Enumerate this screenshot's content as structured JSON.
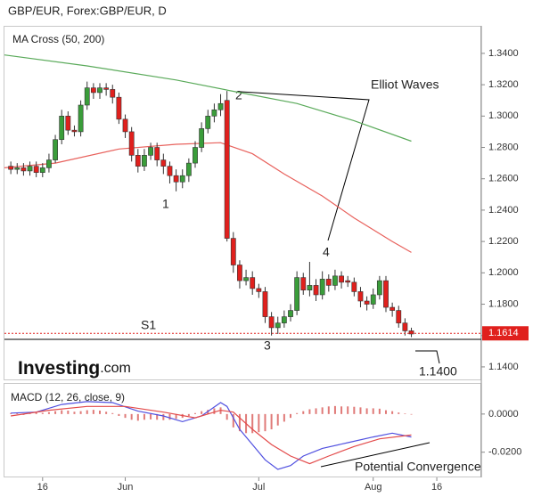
{
  "chart_data": [
    {
      "type": "candlestick",
      "title": "GBP/EUR, Forex:GBP/EUR, D",
      "indicator_label": "MA Cross (50, 200)",
      "up_color": "#3a9d3a",
      "down_color": "#e0201d",
      "open": [
        1.268,
        1.266,
        1.267,
        1.265,
        1.268,
        1.264,
        1.267,
        1.272,
        1.285,
        1.3,
        1.291,
        1.29,
        1.307,
        1.318,
        1.315,
        1.318,
        1.317,
        1.312,
        1.298,
        1.29,
        1.275,
        1.268,
        1.275,
        1.28,
        1.272,
        1.268,
        1.262,
        1.258,
        1.262,
        1.27,
        1.28,
        1.292,
        1.3,
        1.304,
        1.31,
        1.222,
        1.205,
        1.195,
        1.197,
        1.19,
        1.188,
        1.172,
        1.165,
        1.168,
        1.172,
        1.176,
        1.197,
        1.189,
        1.192,
        1.186,
        1.196,
        1.192,
        1.198,
        1.195,
        1.194,
        1.188,
        1.182,
        1.18,
        1.186,
        1.195,
        1.178,
        1.176,
        1.168,
        1.163
      ],
      "high": [
        1.271,
        1.27,
        1.27,
        1.271,
        1.271,
        1.27,
        1.276,
        1.288,
        1.304,
        1.303,
        1.294,
        1.31,
        1.322,
        1.321,
        1.321,
        1.321,
        1.32,
        1.315,
        1.301,
        1.293,
        1.279,
        1.279,
        1.283,
        1.283,
        1.276,
        1.271,
        1.266,
        1.266,
        1.273,
        1.284,
        1.296,
        1.304,
        1.308,
        1.314,
        1.316,
        1.226,
        1.208,
        1.202,
        1.201,
        1.193,
        1.191,
        1.175,
        1.172,
        1.176,
        1.18,
        1.201,
        1.2,
        1.207,
        1.196,
        1.201,
        1.199,
        1.202,
        1.201,
        1.198,
        1.197,
        1.191,
        1.185,
        1.19,
        1.198,
        1.198,
        1.181,
        1.179,
        1.171,
        1.165
      ],
      "low": [
        1.263,
        1.263,
        1.262,
        1.262,
        1.261,
        1.261,
        1.264,
        1.27,
        1.282,
        1.288,
        1.287,
        1.287,
        1.304,
        1.311,
        1.311,
        1.313,
        1.308,
        1.295,
        1.286,
        1.271,
        1.264,
        1.265,
        1.272,
        1.268,
        1.263,
        1.257,
        1.252,
        1.254,
        1.258,
        1.267,
        1.277,
        1.289,
        1.296,
        1.3,
        1.22,
        1.2,
        1.19,
        1.192,
        1.186,
        1.184,
        1.168,
        1.16,
        1.161,
        1.165,
        1.169,
        1.173,
        1.186,
        1.185,
        1.182,
        1.183,
        1.188,
        1.189,
        1.19,
        1.191,
        1.185,
        1.178,
        1.176,
        1.177,
        1.183,
        1.175,
        1.172,
        1.165,
        1.16,
        1.159
      ],
      "close": [
        1.266,
        1.267,
        1.265,
        1.268,
        1.264,
        1.267,
        1.272,
        1.285,
        1.3,
        1.291,
        1.29,
        1.307,
        1.318,
        1.315,
        1.318,
        1.317,
        1.312,
        1.298,
        1.29,
        1.275,
        1.268,
        1.275,
        1.28,
        1.272,
        1.268,
        1.262,
        1.258,
        1.262,
        1.27,
        1.28,
        1.292,
        1.3,
        1.304,
        1.308,
        1.222,
        1.205,
        1.195,
        1.197,
        1.19,
        1.188,
        1.172,
        1.165,
        1.168,
        1.172,
        1.176,
        1.197,
        1.189,
        1.192,
        1.186,
        1.196,
        1.192,
        1.198,
        1.194,
        1.194,
        1.188,
        1.182,
        1.18,
        1.186,
        1.195,
        1.178,
        1.176,
        1.168,
        1.163,
        1.161
      ],
      "ma_lines": [
        {
          "color": "#5aaa5a",
          "x": [
            -1,
            12,
            26,
            36,
            45,
            54,
            63
          ],
          "values": [
            1.339,
            1.332,
            1.323,
            1.315,
            1.308,
            1.297,
            1.284
          ]
        },
        {
          "color": "#e8615c",
          "x": [
            -1,
            7,
            17,
            26,
            33,
            38,
            43,
            49,
            54,
            60,
            63
          ],
          "values": [
            1.267,
            1.27,
            1.279,
            1.282,
            1.283,
            1.276,
            1.263,
            1.249,
            1.235,
            1.22,
            1.213
          ]
        }
      ],
      "last_price": {
        "value": 1.1614,
        "label": "1.1614"
      },
      "wave_labels": [
        "1",
        "2",
        "3",
        "4"
      ],
      "annotation": "Elliot Waves",
      "support_label": "S1",
      "target_label": "1.1400",
      "watermark": [
        "Investing",
        ".com"
      ],
      "xlim": [
        -1,
        74
      ],
      "ylim": [
        1.132,
        1.357
      ],
      "yticks": [
        {
          "value": 1.14,
          "label": "1.1400"
        },
        {
          "value": 1.16,
          "label": "1.1600"
        },
        {
          "value": 1.18,
          "label": "1.1800"
        },
        {
          "value": 1.2,
          "label": "1.2000"
        },
        {
          "value": 1.22,
          "label": "1.2200"
        },
        {
          "value": 1.24,
          "label": "1.2400"
        },
        {
          "value": 1.26,
          "label": "1.2600"
        },
        {
          "value": 1.28,
          "label": "1.2800"
        },
        {
          "value": 1.3,
          "label": "1.3000"
        },
        {
          "value": 1.32,
          "label": "1.3200"
        },
        {
          "value": 1.34,
          "label": "1.3400"
        }
      ]
    },
    {
      "type": "macd",
      "title": "MACD (12, 26, close, 9)",
      "histogram_color": "#e07a78",
      "histogram": [
        0.0005,
        0.0008,
        -0.0005,
        0.001,
        0.0012,
        0.0006,
        0.001,
        0.0015,
        0.002,
        0.0018,
        0.0012,
        0.0015,
        0.002,
        0.0022,
        0.0018,
        0.0012,
        0.0005,
        -0.001,
        -0.002,
        -0.003,
        -0.0035,
        -0.003,
        -0.0028,
        -0.003,
        -0.0032,
        -0.003,
        -0.0025,
        -0.002,
        -0.001,
        0.0005,
        0.0015,
        0.0022,
        0.003,
        0.0035,
        -0.003,
        -0.007,
        -0.009,
        -0.01,
        -0.01,
        -0.0095,
        -0.009,
        -0.008,
        -0.006,
        -0.004,
        -0.002,
        0.0005,
        0.0015,
        0.0025,
        0.003,
        0.0035,
        0.004,
        0.0042,
        0.004,
        0.004,
        0.0038,
        0.0035,
        0.003,
        0.003,
        0.0028,
        0.002,
        0.0015,
        0.0008,
        0.0003,
        -0.0003
      ],
      "lines": [
        {
          "color": "#5050e0",
          "x": [
            0,
            4,
            8,
            12,
            16,
            20,
            24,
            27,
            30,
            33,
            34,
            36,
            38,
            40,
            42,
            44,
            46,
            49,
            53,
            57,
            60,
            63
          ],
          "values": [
            0.0005,
            0.001,
            0.005,
            0.0065,
            0.006,
            0.0015,
            -0.001,
            -0.004,
            -0.001,
            0.006,
            0.004,
            -0.008,
            -0.016,
            -0.024,
            -0.029,
            -0.027,
            -0.022,
            -0.018,
            -0.015,
            -0.012,
            -0.01,
            -0.012
          ]
        },
        {
          "color": "#e34a4a",
          "x": [
            0,
            6,
            12,
            18,
            24,
            29,
            33,
            35,
            38,
            41,
            44,
            47,
            50,
            54,
            58,
            63
          ],
          "values": [
            -0.001,
            0.002,
            0.004,
            0.004,
            0.001,
            -0.002,
            0.002,
            0.001,
            -0.008,
            -0.016,
            -0.022,
            -0.026,
            -0.022,
            -0.017,
            -0.013,
            -0.011
          ]
        }
      ],
      "annotation": "Potential Convergence",
      "xlim": [
        -1,
        74
      ],
      "xticks": [
        {
          "value": 5,
          "label": "16"
        },
        {
          "value": 18,
          "label": "Jun"
        },
        {
          "value": 39,
          "label": "Jul"
        },
        {
          "value": 57,
          "label": "Aug"
        },
        {
          "value": 67,
          "label": "16"
        }
      ],
      "ylim": [
        -0.0332,
        0.0158
      ],
      "yticks": [
        {
          "value": 0,
          "label": "0.0000"
        },
        {
          "value": -0.02,
          "label": "-0.0200"
        }
      ]
    }
  ]
}
